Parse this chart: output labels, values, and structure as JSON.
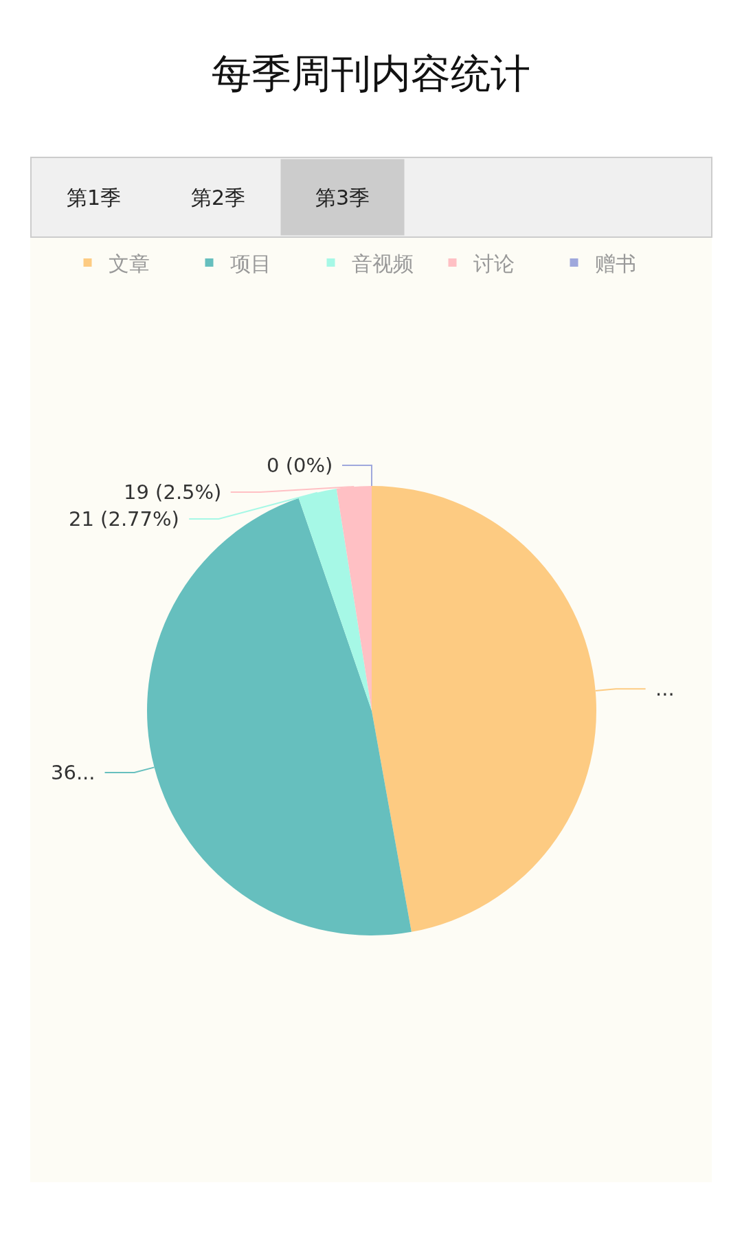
{
  "chart_data": {
    "type": "pie",
    "title": "每季周刊内容统计",
    "annotations": [
      "第1季",
      "第2季",
      "第3季"
    ],
    "categories": [
      "文章",
      "项目",
      "音视频",
      "讨论",
      "赠书"
    ],
    "values": [
      358,
      361,
      21,
      19,
      0
    ],
    "colors": [
      "#fdcb82",
      "#66bfbe",
      "#a6f8e6",
      "#ffc0c4",
      "#9fa8dc"
    ],
    "value_labels": [
      "...",
      "36...",
      "21 (2.77%)",
      "19 (2.5%)",
      "0 (0%)"
    ],
    "legend": "top"
  }
}
